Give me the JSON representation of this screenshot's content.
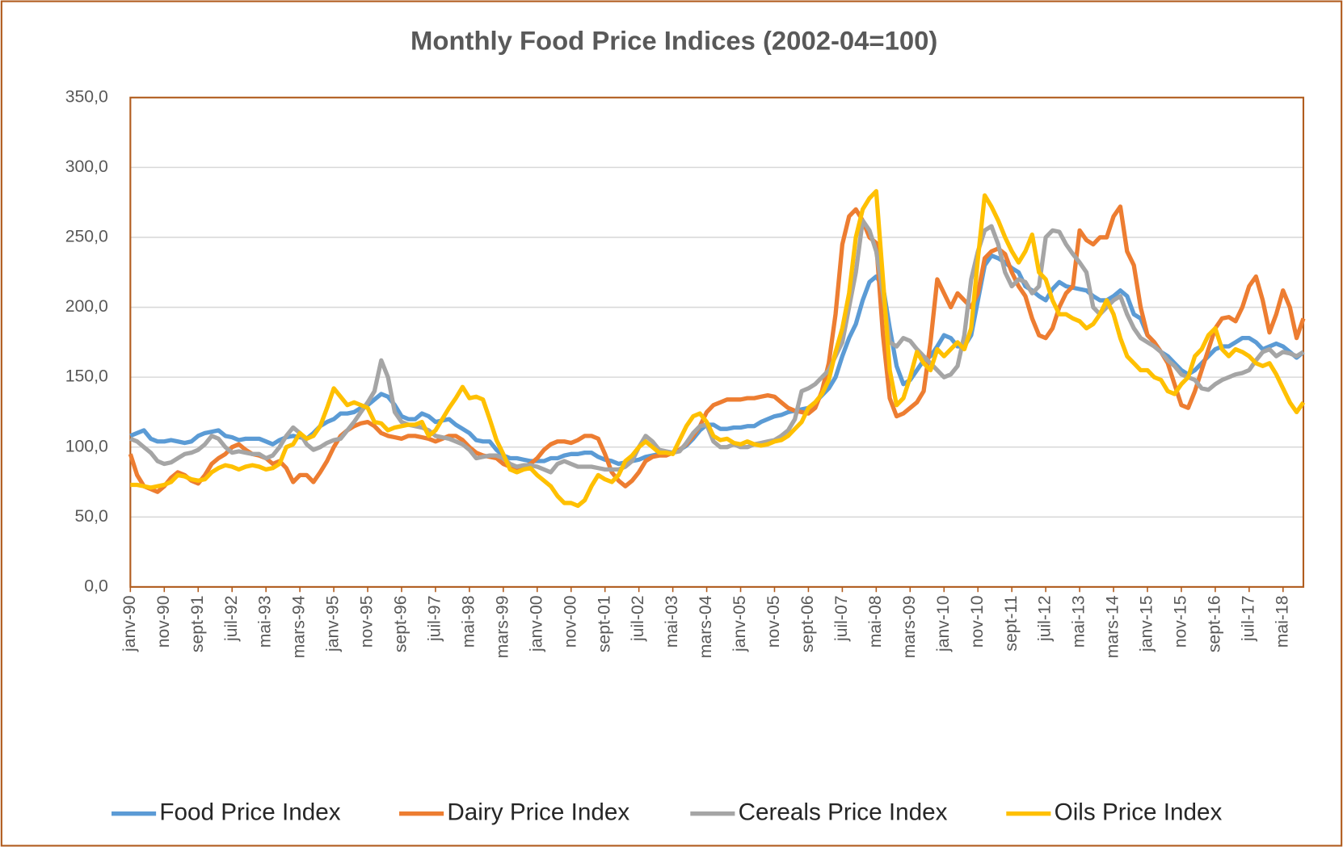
{
  "chart_data": {
    "type": "line",
    "title": "Monthly Food Price Indices (2002-04=100)",
    "categories": [
      "janv-90",
      null,
      null,
      null,
      null,
      "nov-90",
      null,
      null,
      null,
      null,
      "sept-91",
      null,
      null,
      null,
      null,
      "juil-92",
      null,
      null,
      null,
      null,
      "mai-93",
      null,
      null,
      null,
      null,
      "mars-94",
      null,
      null,
      null,
      null,
      "janv-95",
      null,
      null,
      null,
      null,
      "nov-95",
      null,
      null,
      null,
      null,
      "sept-96",
      null,
      null,
      null,
      null,
      "juil-97",
      null,
      null,
      null,
      null,
      "mai-98",
      null,
      null,
      null,
      null,
      "mars-99",
      null,
      null,
      null,
      null,
      "janv-00",
      null,
      null,
      null,
      null,
      "nov-00",
      null,
      null,
      null,
      null,
      "sept-01",
      null,
      null,
      null,
      null,
      "juil-02",
      null,
      null,
      null,
      null,
      "mai-03",
      null,
      null,
      null,
      null,
      "mars-04",
      null,
      null,
      null,
      null,
      "janv-05",
      null,
      null,
      null,
      null,
      "nov-05",
      null,
      null,
      null,
      null,
      "sept-06",
      null,
      null,
      null,
      null,
      "juil-07",
      null,
      null,
      null,
      null,
      "mai-08",
      null,
      null,
      null,
      null,
      "mars-09",
      null,
      null,
      null,
      null,
      "janv-10",
      null,
      null,
      null,
      null,
      "nov-10",
      null,
      null,
      null,
      null,
      "sept-11",
      null,
      null,
      null,
      null,
      "juil-12",
      null,
      null,
      null,
      null,
      "mai-13",
      null,
      null,
      null,
      null,
      "mars-14",
      null,
      null,
      null,
      null,
      "janv-15",
      null,
      null,
      null,
      null,
      "nov-15",
      null,
      null,
      null,
      null,
      "sept-16",
      null,
      null,
      null,
      null,
      "juil-17",
      null,
      null,
      null,
      null,
      "mai-18",
      null,
      null,
      null
    ],
    "series": [
      {
        "name": "Food Price Index",
        "color": "#5b9bd5",
        "values": [
          108,
          110,
          112,
          106,
          104,
          104,
          105,
          104,
          103,
          104,
          108,
          110,
          111,
          112,
          108,
          107,
          105,
          106,
          106,
          106,
          104,
          102,
          105,
          107,
          108,
          107,
          106,
          110,
          115,
          118,
          120,
          124,
          124,
          125,
          128,
          130,
          134,
          138,
          136,
          130,
          122,
          120,
          120,
          124,
          122,
          118,
          119,
          120,
          116,
          113,
          110,
          105,
          104,
          104,
          98,
          94,
          92,
          92,
          91,
          90,
          90,
          90,
          92,
          92,
          94,
          95,
          95,
          96,
          96,
          93,
          91,
          90,
          88,
          89,
          90,
          91,
          93,
          94,
          95,
          95,
          96,
          98,
          101,
          106,
          112,
          116,
          116,
          113,
          113,
          114,
          114,
          115,
          115,
          118,
          120,
          122,
          123,
          125,
          126,
          127,
          128,
          132,
          137,
          142,
          150,
          165,
          178,
          188,
          205,
          218,
          222,
          215,
          185,
          158,
          145,
          148,
          155,
          162,
          165,
          172,
          180,
          178,
          172,
          172,
          180,
          205,
          230,
          237,
          235,
          232,
          228,
          225,
          215,
          212,
          208,
          205,
          213,
          218,
          215,
          214,
          213,
          212,
          208,
          205,
          205,
          208,
          212,
          208,
          195,
          192,
          180,
          175,
          168,
          165,
          160,
          155,
          152,
          155,
          160,
          165,
          170,
          172,
          172,
          175,
          178,
          178,
          175,
          170,
          172,
          174,
          172,
          168,
          164,
          168
        ]
      },
      {
        "name": "Dairy Price Index",
        "color": "#ed7d31",
        "values": [
          95,
          80,
          72,
          70,
          68,
          72,
          78,
          82,
          80,
          76,
          74,
          80,
          88,
          92,
          95,
          100,
          102,
          98,
          95,
          94,
          92,
          88,
          90,
          85,
          75,
          80,
          80,
          75,
          82,
          90,
          100,
          108,
          112,
          115,
          117,
          118,
          115,
          110,
          108,
          107,
          106,
          108,
          108,
          107,
          106,
          104,
          106,
          108,
          108,
          105,
          100,
          96,
          94,
          93,
          92,
          88,
          86,
          85,
          86,
          88,
          92,
          98,
          102,
          104,
          104,
          103,
          105,
          108,
          108,
          106,
          95,
          82,
          76,
          72,
          76,
          82,
          90,
          93,
          94,
          94,
          96,
          98,
          102,
          108,
          115,
          125,
          130,
          132,
          134,
          134,
          134,
          135,
          135,
          136,
          137,
          136,
          132,
          128,
          126,
          125,
          124,
          128,
          140,
          160,
          195,
          245,
          265,
          270,
          262,
          250,
          246,
          180,
          135,
          122,
          124,
          128,
          132,
          140,
          175,
          220,
          210,
          200,
          210,
          205,
          200,
          210,
          235,
          240,
          242,
          238,
          225,
          215,
          208,
          192,
          180,
          178,
          185,
          200,
          210,
          215,
          255,
          248,
          245,
          250,
          250,
          265,
          272,
          240,
          230,
          200,
          180,
          175,
          168,
          160,
          145,
          130,
          128,
          140,
          155,
          170,
          185,
          192,
          193,
          190,
          200,
          215,
          222,
          205,
          182,
          195,
          212,
          200,
          178,
          192
        ]
      },
      {
        "name": "Cereals Price Index",
        "color": "#a5a5a5",
        "values": [
          106,
          104,
          100,
          96,
          90,
          88,
          89,
          92,
          95,
          96,
          98,
          102,
          108,
          106,
          100,
          96,
          97,
          96,
          95,
          95,
          92,
          94,
          100,
          108,
          114,
          110,
          102,
          98,
          100,
          103,
          105,
          106,
          112,
          118,
          125,
          132,
          140,
          162,
          150,
          125,
          118,
          116,
          115,
          114,
          112,
          108,
          107,
          106,
          104,
          102,
          98,
          92,
          93,
          94,
          94,
          92,
          88,
          86,
          87,
          87,
          86,
          84,
          82,
          88,
          90,
          88,
          86,
          86,
          86,
          85,
          84,
          84,
          84,
          86,
          90,
          100,
          108,
          104,
          98,
          97,
          96,
          97,
          103,
          110,
          115,
          116,
          104,
          100,
          100,
          102,
          100,
          100,
          102,
          103,
          104,
          105,
          108,
          112,
          120,
          140,
          142,
          145,
          150,
          155,
          165,
          175,
          200,
          225,
          262,
          255,
          240,
          210,
          175,
          172,
          178,
          176,
          170,
          165,
          160,
          155,
          150,
          152,
          158,
          180,
          220,
          240,
          255,
          258,
          245,
          225,
          215,
          220,
          218,
          210,
          215,
          250,
          255,
          254,
          245,
          238,
          232,
          225,
          200,
          195,
          200,
          205,
          208,
          195,
          185,
          178,
          175,
          172,
          168,
          162,
          158,
          152,
          150,
          148,
          142,
          141,
          145,
          148,
          150,
          152,
          153,
          155,
          162,
          168,
          170,
          165,
          168,
          167,
          165,
          168
        ]
      },
      {
        "name": "Oils Price Index",
        "color": "#ffc000",
        "values": [
          73,
          73,
          72,
          71,
          72,
          73,
          75,
          80,
          79,
          77,
          76,
          77,
          82,
          85,
          87,
          86,
          84,
          86,
          87,
          86,
          84,
          85,
          88,
          100,
          102,
          110,
          106,
          108,
          115,
          128,
          142,
          136,
          130,
          132,
          130,
          128,
          118,
          117,
          112,
          114,
          115,
          116,
          116,
          118,
          108,
          112,
          120,
          128,
          135,
          143,
          135,
          136,
          134,
          120,
          105,
          95,
          84,
          82,
          84,
          85,
          80,
          76,
          72,
          65,
          60,
          60,
          58,
          62,
          72,
          80,
          77,
          75,
          80,
          90,
          94,
          100,
          104,
          100,
          96,
          96,
          95,
          105,
          115,
          122,
          124,
          118,
          108,
          105,
          106,
          103,
          102,
          104,
          102,
          101,
          102,
          104,
          105,
          108,
          113,
          118,
          128,
          132,
          138,
          148,
          168,
          185,
          210,
          250,
          270,
          278,
          283,
          220,
          155,
          130,
          135,
          150,
          168,
          160,
          155,
          170,
          165,
          170,
          175,
          170,
          185,
          235,
          280,
          272,
          262,
          250,
          240,
          232,
          240,
          252,
          225,
          220,
          205,
          195,
          195,
          192,
          190,
          185,
          188,
          195,
          205,
          195,
          178,
          165,
          160,
          155,
          155,
          150,
          148,
          140,
          138,
          145,
          150,
          165,
          170,
          180,
          185,
          170,
          165,
          170,
          168,
          165,
          160,
          158,
          160,
          152,
          142,
          132,
          125,
          132
        ]
      }
    ],
    "ylim": [
      0,
      350
    ],
    "yticks": [
      {
        "value": 0,
        "label": "0,0"
      },
      {
        "value": 50,
        "label": "50,0"
      },
      {
        "value": 100,
        "label": "100,0"
      },
      {
        "value": 150,
        "label": "150,0"
      },
      {
        "value": 200,
        "label": "200,0"
      },
      {
        "value": 250,
        "label": "250,0"
      },
      {
        "value": 300,
        "label": "300,0"
      },
      {
        "value": 350,
        "label": "350,0"
      }
    ],
    "grid": true,
    "legend": "bottom"
  }
}
